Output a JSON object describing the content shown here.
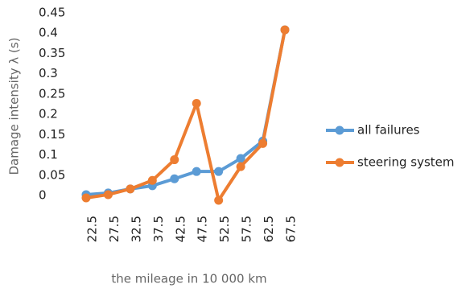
{
  "chart_data": {
    "type": "line",
    "y_label": "Damage intensity λ (s)",
    "x_label": "the mileage  in  10 000 km",
    "categories": [
      "22.5",
      "27.5",
      "32.5",
      "37.5",
      "42.5",
      "47.5",
      "52.5",
      "57.5",
      "62.5",
      "67.5"
    ],
    "series": [
      {
        "name": "all failures",
        "color": "#5b9bd5",
        "values": [
          0.014,
          0.018,
          0.028,
          0.036,
          0.053,
          0.071,
          0.071,
          0.103,
          0.146,
          0.42
        ]
      },
      {
        "name": "steering system",
        "color": "#ed7d31",
        "values": [
          0.006,
          0.014,
          0.028,
          0.049,
          0.1,
          0.239,
          0,
          0.083,
          0.14,
          0.42
        ]
      }
    ],
    "ylim": [
      0,
      0.45
    ],
    "yticks": [
      0,
      0.05,
      0.1,
      0.15,
      0.2,
      0.25,
      0.3,
      0.35,
      0.4,
      0.45
    ],
    "grid": false,
    "legend": "right"
  }
}
